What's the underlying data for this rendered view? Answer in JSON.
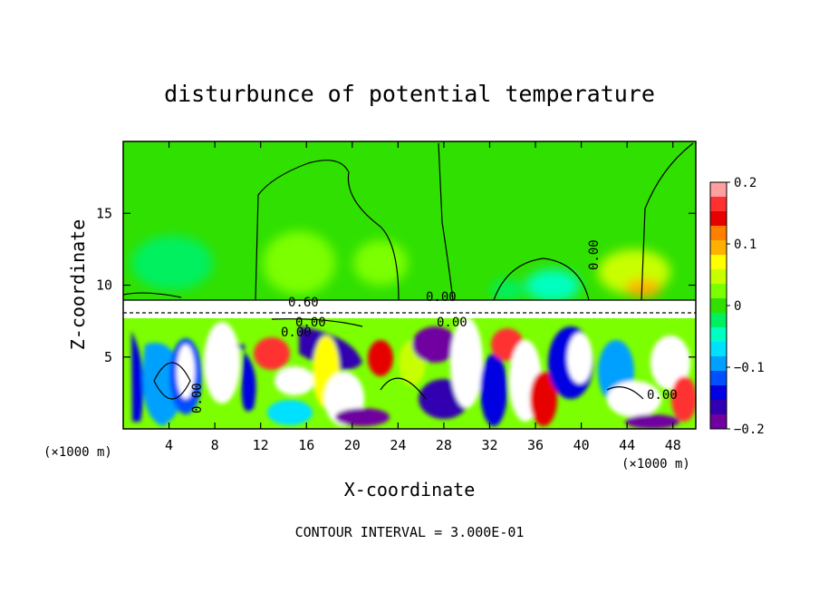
{
  "chart_data": {
    "type": "heatmap",
    "title": "disturbunce of potential temperature",
    "xlabel": "X-coordinate",
    "ylabel": "Z-coordinate",
    "x_unit_left": "(×1000 m)",
    "x_unit_right": "(×1000 m)",
    "xlim": [
      0,
      50
    ],
    "ylim": [
      0,
      20
    ],
    "x_ticks": [
      "4",
      "8",
      "12",
      "16",
      "20",
      "24",
      "28",
      "32",
      "36",
      "40",
      "44",
      "48"
    ],
    "y_ticks": [
      "5",
      "10",
      "15"
    ],
    "colorbar": {
      "range": [
        -0.2,
        0.2
      ],
      "tick_labels": [
        "0.2",
        "0.1",
        "0",
        "−0.1",
        "−0.2"
      ],
      "colors": [
        "#ff9f9f",
        "#ff3030",
        "#e60000",
        "#ff8000",
        "#ffb000",
        "#ffff00",
        "#c8ff00",
        "#7cff00",
        "#30e000",
        "#00f060",
        "#00ffc0",
        "#00e0ff",
        "#00a0ff",
        "#0050ff",
        "#0000e0",
        "#3000b0",
        "#7000a0"
      ]
    },
    "contour_labels": [
      "0.60",
      "0.00",
      "0.00",
      "0.00",
      "0.00",
      "0.00",
      "0.00",
      "0.00"
    ],
    "footer": "CONTOUR INTERVAL = 3.000E-01"
  }
}
